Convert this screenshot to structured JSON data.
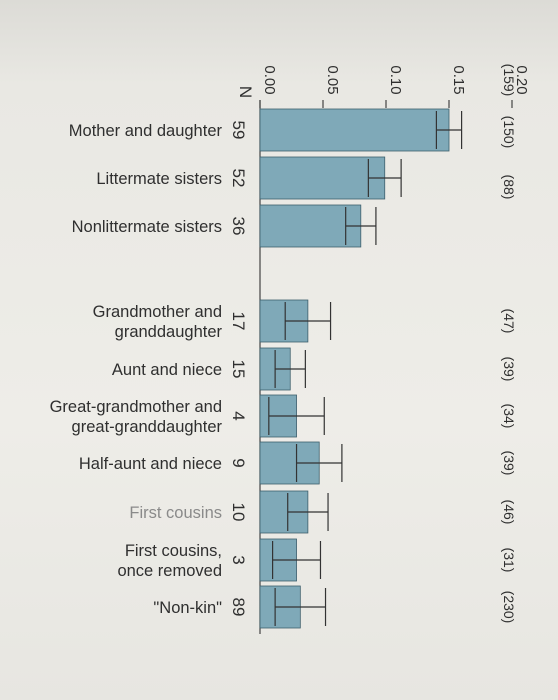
{
  "chart_data": {
    "type": "bar",
    "orientation": "horizontal",
    "value_axis_position": "top",
    "n_label": "N",
    "ylim": [
      0,
      0.2
    ],
    "ticks": [
      "0.20",
      "0.15",
      "0.10",
      "0.05",
      "0.00"
    ],
    "tick_values": [
      0.2,
      0.15,
      0.1,
      0.05,
      0.0
    ],
    "categories": [
      {
        "label": [
          "Mother and daughter"
        ],
        "n": "59",
        "value": 0.15,
        "err": 0.01,
        "count": "(159)",
        "label_color": "dark"
      },
      {
        "label": [
          "Littermate sisters"
        ],
        "n": "52",
        "value": 0.099,
        "err": 0.013,
        "count": "(150)",
        "label_color": "dark"
      },
      {
        "label": [
          "Nonlittermate sisters"
        ],
        "n": "36",
        "value": 0.08,
        "err": 0.012,
        "count": "(88)",
        "label_color": "dark"
      },
      {
        "label": [
          "Grandmother and",
          "granddaughter"
        ],
        "n": "17",
        "value": 0.038,
        "err": 0.018,
        "count": "(47)",
        "label_color": "dark"
      },
      {
        "label": [
          "Aunt and niece"
        ],
        "n": "15",
        "value": 0.024,
        "err": 0.012,
        "count": "(39)",
        "label_color": "dark"
      },
      {
        "label": [
          "Great-grandmother and",
          "great-granddaughter"
        ],
        "n": "4",
        "value": 0.029,
        "err": 0.022,
        "count": "(34)",
        "label_color": "dark"
      },
      {
        "label": [
          "Half-aunt and niece"
        ],
        "n": "9",
        "value": 0.047,
        "err": 0.018,
        "count": "(39)",
        "label_color": "dark"
      },
      {
        "label": [
          "First cousins"
        ],
        "n": "10",
        "value": 0.038,
        "err": 0.016,
        "count": "(46)",
        "label_color": "light"
      },
      {
        "label": [
          "First cousins,",
          "once removed"
        ],
        "n": "3",
        "value": 0.029,
        "err": 0.019,
        "count": "(31)",
        "label_color": "dark"
      },
      {
        "label": [
          "\"Non-kin\""
        ],
        "n": "89",
        "value": 0.032,
        "err": 0.02,
        "count": "(230)",
        "label_color": "dark"
      }
    ]
  }
}
